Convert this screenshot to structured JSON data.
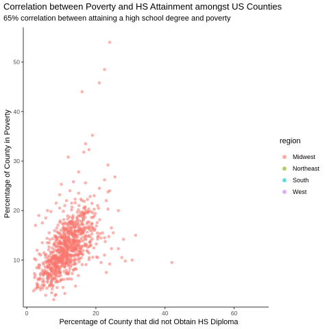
{
  "chart_data": {
    "type": "scatter",
    "title": "Correlation between Poverty and HS Attainment amongst US Counties",
    "subtitle": "65% correlation between attaining a high school degree and poverty",
    "xlabel": "Percentage of County that did not Obtain HS Diploma",
    "ylabel": "Percentage of County in Poverty",
    "xlim": [
      -1,
      70
    ],
    "ylim": [
      0.5,
      57
    ],
    "xticks": [
      0,
      20,
      40,
      60
    ],
    "yticks": [
      10,
      20,
      30,
      40,
      50
    ],
    "grid": false,
    "legend": {
      "title": "region",
      "placement": "right",
      "entries": [
        {
          "name": "Midwest",
          "color": "#F8766D"
        },
        {
          "name": "Northeast",
          "color": "#7CAE00"
        },
        {
          "name": "South",
          "color": "#00BFC4"
        },
        {
          "name": "West",
          "color": "#C77CFF"
        }
      ]
    },
    "series": [
      {
        "name": "Midwest",
        "color": "#F8766D",
        "points": [
          [
            24.0,
            54.0
          ],
          [
            22.5,
            48.5
          ],
          [
            21.0,
            45.8
          ],
          [
            16.0,
            44.0
          ],
          [
            19.0,
            35.2
          ],
          [
            17.0,
            33.5
          ],
          [
            18.0,
            32.3
          ],
          [
            12.0,
            30.8
          ],
          [
            23.5,
            29.2
          ],
          [
            16.5,
            31.8
          ],
          [
            15.0,
            27.8
          ],
          [
            22.5,
            26.2
          ],
          [
            25.5,
            26.8
          ],
          [
            10.0,
            25.3
          ],
          [
            13.5,
            25.8
          ],
          [
            17.0,
            25.6
          ],
          [
            21.0,
            24.5
          ],
          [
            12.5,
            24.0
          ],
          [
            19.5,
            23.0
          ],
          [
            23.0,
            22.0
          ],
          [
            24.0,
            24.0
          ],
          [
            9.5,
            23.2
          ],
          [
            15.0,
            23.5
          ],
          [
            14.0,
            22.3
          ],
          [
            11.5,
            22.0
          ],
          [
            26.5,
            20.0
          ],
          [
            20.5,
            21.0
          ],
          [
            16.5,
            20.5
          ],
          [
            18.5,
            19.8
          ],
          [
            13.0,
            21.5
          ],
          [
            11.0,
            21.0
          ],
          [
            8.5,
            21.5
          ],
          [
            7.0,
            19.8
          ],
          [
            9.5,
            20.5
          ],
          [
            6.0,
            20.0
          ],
          [
            5.5,
            18.5
          ],
          [
            3.5,
            19.0
          ],
          [
            4.5,
            17.5
          ],
          [
            2.5,
            17.0
          ],
          [
            6.5,
            15.5
          ],
          [
            24.5,
            16.5
          ],
          [
            25.0,
            15.5
          ],
          [
            31.5,
            15.0
          ],
          [
            28.0,
            14.2
          ],
          [
            22.5,
            14.5
          ],
          [
            24.5,
            12.3
          ],
          [
            26.5,
            12.3
          ],
          [
            28.5,
            9.8
          ],
          [
            30.5,
            10.0
          ],
          [
            27.5,
            10.5
          ],
          [
            42.0,
            9.5
          ],
          [
            24.0,
            9.2
          ],
          [
            23.0,
            7.5
          ],
          [
            22.5,
            11.0
          ],
          [
            20.5,
            10.5
          ],
          [
            21.5,
            9.5
          ],
          [
            4.5,
            13.5
          ],
          [
            3.0,
            12.0
          ],
          [
            4.0,
            11.0
          ],
          [
            3.5,
            9.0
          ],
          [
            4.5,
            7.5
          ],
          [
            3.2,
            5.0
          ],
          [
            4.0,
            4.0
          ],
          [
            3.0,
            4.5
          ],
          [
            5.0,
            4.8
          ],
          [
            6.0,
            5.5
          ]
        ],
        "clusters": [
          {
            "cx": 11.0,
            "cy": 12.0,
            "sx": 3.4,
            "sy": 3.8,
            "n": 520
          },
          {
            "cx": 14.5,
            "cy": 16.0,
            "sx": 3.0,
            "sy": 2.8,
            "n": 110
          },
          {
            "cx": 7.5,
            "cy": 8.0,
            "sx": 2.2,
            "sy": 2.0,
            "n": 90
          },
          {
            "cx": 17.0,
            "cy": 13.0,
            "sx": 3.0,
            "sy": 2.5,
            "n": 70
          }
        ]
      }
    ]
  }
}
